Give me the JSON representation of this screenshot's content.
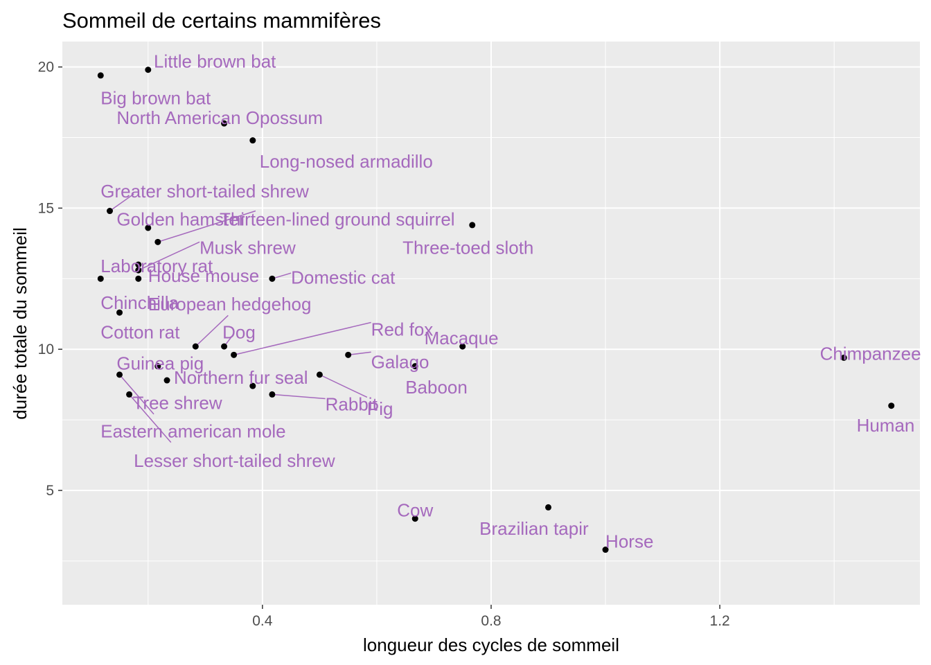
{
  "chart_data": {
    "type": "scatter",
    "title": "Sommeil de certains mammifères",
    "xlabel": "longueur des cycles de sommeil",
    "ylabel": "durée totale du sommeil",
    "xlim": [
      0.05,
      1.55
    ],
    "ylim": [
      0.95,
      20.9
    ],
    "x_ticks": [
      0.4,
      0.8,
      1.2
    ],
    "x_tick_labels": [
      "0.4",
      "0.8",
      "1.2"
    ],
    "y_ticks": [
      5,
      10,
      15,
      20
    ],
    "y_tick_labels": [
      "5",
      "10",
      "15",
      "20"
    ],
    "grid": true,
    "point_color": "#000000",
    "label_color": "#A569BD",
    "panel_background": "#EBEBEB",
    "grid_color": "#FFFFFF",
    "points": [
      {
        "name": "Big brown bat",
        "x": 0.117,
        "y": 19.7
      },
      {
        "name": "Little brown bat",
        "x": 0.2,
        "y": 19.9
      },
      {
        "name": "North American Opossum",
        "x": 0.333,
        "y": 18.0
      },
      {
        "name": "Long-nosed armadillo",
        "x": 0.383,
        "y": 17.4
      },
      {
        "name": "Greater short-tailed shrew",
        "x": 0.133,
        "y": 14.9
      },
      {
        "name": "Golden hamster",
        "x": 0.2,
        "y": 14.3
      },
      {
        "name": "Thirteen-lined ground squirrel",
        "x": 0.217,
        "y": 13.8
      },
      {
        "name": "Three-toed sloth",
        "x": 0.767,
        "y": 14.4
      },
      {
        "name": "Musk shrew",
        "x": 0.183,
        "y": 12.8
      },
      {
        "name": "Laboratory rat",
        "x": 0.183,
        "y": 13.0
      },
      {
        "name": "House mouse",
        "x": 0.183,
        "y": 12.5
      },
      {
        "name": "Domestic cat",
        "x": 0.417,
        "y": 12.5
      },
      {
        "name": "Chinchilla",
        "x": 0.117,
        "y": 12.5
      },
      {
        "name": "Cotton rat",
        "x": 0.15,
        "y": 11.3
      },
      {
        "name": "European hedgehog",
        "x": 0.283,
        "y": 10.1
      },
      {
        "name": "Dog",
        "x": 0.333,
        "y": 10.1
      },
      {
        "name": "Red fox",
        "x": 0.35,
        "y": 9.8
      },
      {
        "name": "Macaque",
        "x": 0.75,
        "y": 10.1
      },
      {
        "name": "Galago",
        "x": 0.55,
        "y": 9.8
      },
      {
        "name": "Guinea pig",
        "x": 0.217,
        "y": 9.4
      },
      {
        "name": "Baboon",
        "x": 0.667,
        "y": 9.4
      },
      {
        "name": "Chimpanzee",
        "x": 1.417,
        "y": 9.7
      },
      {
        "name": "Northern fur seal",
        "x": 0.233,
        "y": 8.9
      },
      {
        "name": "Eastern american mole",
        "x": 0.15,
        "y": 9.1
      },
      {
        "name": "Pig",
        "x": 0.5,
        "y": 9.1
      },
      {
        "name": "Tree shrew",
        "x": 0.383,
        "y": 8.7
      },
      {
        "name": "Rabbit",
        "x": 0.417,
        "y": 8.4
      },
      {
        "name": "Lesser short-tailed shrew",
        "x": 0.167,
        "y": 8.4
      },
      {
        "name": "Human",
        "x": 1.5,
        "y": 8.0
      },
      {
        "name": "Cow",
        "x": 0.667,
        "y": 4.0
      },
      {
        "name": "Brazilian tapir",
        "x": 0.9,
        "y": 4.4
      },
      {
        "name": "Horse",
        "x": 1.0,
        "y": 2.9
      }
    ],
    "labels": [
      {
        "name": "Big brown bat",
        "x": 0.117,
        "y": 18.9,
        "anchor": "start",
        "leader": false
      },
      {
        "name": "Little brown bat",
        "x": 0.21,
        "y": 20.2,
        "anchor": "start",
        "leader": false
      },
      {
        "name": "North American Opossum",
        "x": 0.145,
        "y": 18.2,
        "anchor": "start",
        "leader": false
      },
      {
        "name": "Long-nosed armadillo",
        "x": 0.395,
        "y": 16.65,
        "anchor": "start",
        "leader": false
      },
      {
        "name": "Greater short-tailed shrew",
        "x": 0.117,
        "y": 15.6,
        "anchor": "start",
        "leader": true
      },
      {
        "name": "Golden hamster",
        "x": 0.145,
        "y": 14.6,
        "anchor": "start",
        "leader": false
      },
      {
        "name": "Thirteen-lined ground squirrel",
        "x": 0.325,
        "y": 14.6,
        "anchor": "start",
        "leader": true
      },
      {
        "name": "Three-toed sloth",
        "x": 0.645,
        "y": 13.6,
        "anchor": "start",
        "leader": false
      },
      {
        "name": "Musk shrew",
        "x": 0.29,
        "y": 13.6,
        "anchor": "start",
        "leader": true
      },
      {
        "name": "Laboratory rat",
        "x": 0.117,
        "y": 12.95,
        "anchor": "start",
        "leader": false
      },
      {
        "name": "House mouse",
        "x": 0.2,
        "y": 12.6,
        "anchor": "start",
        "leader": false
      },
      {
        "name": "Domestic cat",
        "x": 0.45,
        "y": 12.55,
        "anchor": "start",
        "leader": true
      },
      {
        "name": "Chinchilla",
        "x": 0.117,
        "y": 11.65,
        "anchor": "start",
        "leader": false
      },
      {
        "name": "Cotton rat",
        "x": 0.117,
        "y": 10.6,
        "anchor": "start",
        "leader": false
      },
      {
        "name": "European hedgehog",
        "x": 0.2,
        "y": 11.6,
        "anchor": "start",
        "leader": true
      },
      {
        "name": "Dog",
        "x": 0.33,
        "y": 10.6,
        "anchor": "start",
        "leader": true
      },
      {
        "name": "Red fox",
        "x": 0.59,
        "y": 10.7,
        "anchor": "start",
        "leader": true
      },
      {
        "name": "Macaque",
        "x": 0.748,
        "y": 10.4,
        "anchor": "middle",
        "leader": false
      },
      {
        "name": "Galago",
        "x": 0.59,
        "y": 9.55,
        "anchor": "start",
        "leader": true
      },
      {
        "name": "Guinea pig",
        "x": 0.145,
        "y": 9.5,
        "anchor": "start",
        "leader": false
      },
      {
        "name": "Baboon",
        "x": 0.65,
        "y": 8.65,
        "anchor": "start",
        "leader": false
      },
      {
        "name": "Chimpanzee",
        "x": 1.375,
        "y": 9.85,
        "anchor": "start",
        "leader": false
      },
      {
        "name": "Northern fur seal",
        "x": 0.245,
        "y": 9.0,
        "anchor": "start",
        "leader": false
      },
      {
        "name": "Eastern american mole",
        "x": 0.117,
        "y": 7.1,
        "anchor": "start",
        "leader": true
      },
      {
        "name": "Pig",
        "x": 0.583,
        "y": 7.9,
        "anchor": "start",
        "leader": true
      },
      {
        "name": "Tree shrew",
        "x": 0.173,
        "y": 8.1,
        "anchor": "start",
        "leader": false
      },
      {
        "name": "Rabbit",
        "x": 0.51,
        "y": 8.05,
        "anchor": "start",
        "leader": true
      },
      {
        "name": "Lesser short-tailed shrew",
        "x": 0.175,
        "y": 6.05,
        "anchor": "start",
        "leader": true
      },
      {
        "name": "Human",
        "x": 1.49,
        "y": 7.3,
        "anchor": "middle",
        "leader": false
      },
      {
        "name": "Cow",
        "x": 0.667,
        "y": 4.3,
        "anchor": "middle",
        "leader": false
      },
      {
        "name": "Brazilian tapir",
        "x": 0.875,
        "y": 3.65,
        "anchor": "middle",
        "leader": false
      },
      {
        "name": "Horse",
        "x": 1.042,
        "y": 3.2,
        "anchor": "middle",
        "leader": false
      }
    ],
    "leaders": [
      {
        "name": "Greater short-tailed shrew",
        "x1": 0.133,
        "y1": 14.9,
        "x2": 0.175,
        "y2": 15.5
      },
      {
        "name": "Thirteen-lined ground squirrel",
        "x1": 0.217,
        "y1": 13.8,
        "x2": 0.388,
        "y2": 14.9
      },
      {
        "name": "Musk shrew",
        "x1": 0.183,
        "y1": 12.8,
        "x2": 0.29,
        "y2": 13.8
      },
      {
        "name": "Domestic cat",
        "x1": 0.417,
        "y1": 12.5,
        "x2": 0.45,
        "y2": 12.7
      },
      {
        "name": "European hedgehog",
        "x1": 0.283,
        "y1": 10.1,
        "x2": 0.34,
        "y2": 11.2
      },
      {
        "name": "Dog",
        "x1": 0.333,
        "y1": 10.1,
        "x2": 0.35,
        "y2": 10.55
      },
      {
        "name": "Red fox",
        "x1": 0.35,
        "y1": 9.8,
        "x2": 0.59,
        "y2": 10.95
      },
      {
        "name": "Galago",
        "x1": 0.55,
        "y1": 9.8,
        "x2": 0.59,
        "y2": 9.9
      },
      {
        "name": "Eastern american mole",
        "x1": 0.15,
        "y1": 9.1,
        "x2": 0.21,
        "y2": 7.7
      },
      {
        "name": "Pig",
        "x1": 0.5,
        "y1": 9.1,
        "x2": 0.583,
        "y2": 8.3
      },
      {
        "name": "Rabbit",
        "x1": 0.417,
        "y1": 8.4,
        "x2": 0.51,
        "y2": 8.25
      },
      {
        "name": "Lesser short-tailed shrew",
        "x1": 0.167,
        "y1": 8.4,
        "x2": 0.24,
        "y2": 6.7
      }
    ]
  }
}
